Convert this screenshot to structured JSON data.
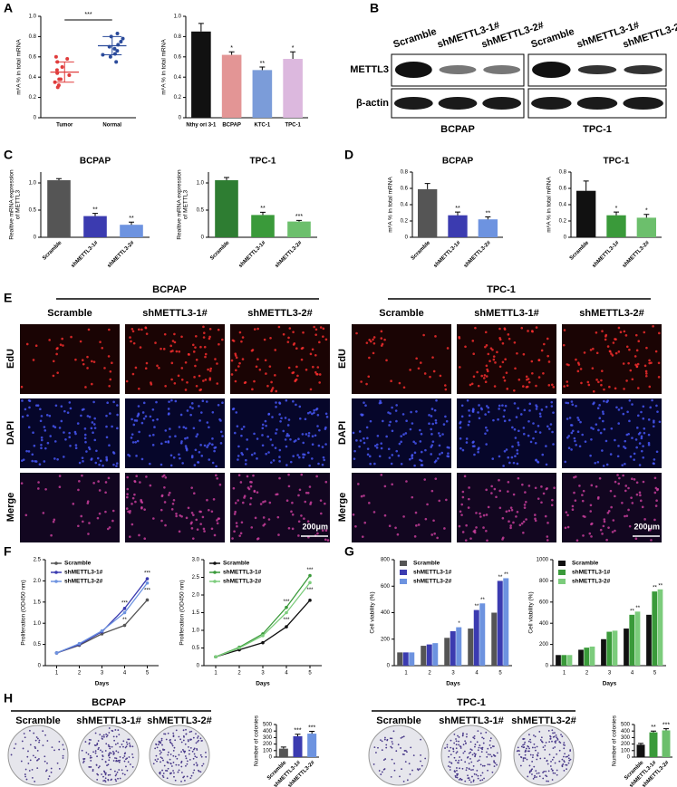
{
  "panels": [
    "A",
    "B",
    "C",
    "D",
    "E",
    "F",
    "G",
    "H"
  ],
  "blot": {
    "lanes": [
      "Scramble",
      "shMETTL3-1#",
      "shMETTL3-2#"
    ],
    "rows": [
      "METTL3",
      "β-actin"
    ],
    "cells": [
      "BCPAP",
      "TPC-1"
    ]
  },
  "edu": {
    "groups": [
      "BCPAP",
      "TPC-1"
    ],
    "columns": [
      "Scramble",
      "shMETTL3-1#",
      "shMETTL3-2#"
    ],
    "rows": [
      "EdU",
      "DAPI",
      "Merge"
    ],
    "scale_bar": "200μm"
  },
  "colony": {
    "groups": [
      "BCPAP",
      "TPC-1"
    ],
    "columns": [
      "Scramble",
      "shMETTL3-1#",
      "shMETTL3-2#"
    ]
  },
  "chart_data": [
    {
      "type": "strip",
      "categories": [
        "Tumor",
        "Normal"
      ],
      "points": [
        [
          0.32,
          0.35,
          0.38,
          0.42,
          0.44,
          0.47,
          0.5,
          0.55,
          0.58,
          0.6,
          0.38,
          0.3
        ],
        [
          0.55,
          0.6,
          0.63,
          0.66,
          0.7,
          0.72,
          0.75,
          0.78,
          0.8,
          0.83,
          0.68,
          0.62
        ]
      ],
      "means": [
        0.45,
        0.71
      ],
      "errors": [
        0.1,
        0.09
      ],
      "colors": [
        "#e03c3c",
        "#2a4a9a"
      ],
      "annotation": "***",
      "ylabel": "m⁶A % in total mRNA",
      "ylim": [
        0,
        1
      ],
      "yticks": [
        0,
        0.2,
        0.4,
        0.6,
        0.8,
        {
          "value": 1,
          "label": "1.0"
        }
      ]
    },
    {
      "type": "bar",
      "categories": [
        "Nthy ori 3-1",
        "BCPAP",
        "KTC-1",
        "TPC-1"
      ],
      "values": [
        0.85,
        0.62,
        0.47,
        0.58
      ],
      "errors": [
        0.08,
        0.03,
        0.03,
        0.07
      ],
      "colors": [
        "#111111",
        "#e39595",
        "#7b9cd9",
        "#dcb8de"
      ],
      "annotations": [
        null,
        "*",
        "**",
        "*"
      ],
      "xtick_rotation": 0,
      "ylabel": "m⁶A % in total mRNA",
      "ylim": [
        0,
        1
      ],
      "yticks": [
        0,
        0.2,
        0.4,
        0.6,
        0.8,
        {
          "value": 1,
          "label": "1.0"
        }
      ]
    },
    {
      "type": "bar",
      "title": "BCPAP",
      "categories": [
        "Scramble",
        "shMETTL3-1#",
        "shMETTL3-2#"
      ],
      "values": [
        1.05,
        0.39,
        0.23
      ],
      "errors": [
        0.03,
        0.05,
        0.05
      ],
      "colors": [
        "#555555",
        "#3b3bb0",
        "#6d93e0"
      ],
      "annotations": [
        null,
        "**",
        "**"
      ],
      "xtick_rotation": 45,
      "ylabel": [
        "Realtive mRNA expression",
        "of METTL3"
      ],
      "ylim": [
        0,
        1.2
      ],
      "yticks": [
        0,
        0.5,
        {
          "value": 1,
          "label": "1.0"
        }
      ]
    },
    {
      "type": "bar",
      "title": "TPC-1",
      "categories": [
        "Scramble",
        "shMETTL3-1#",
        "shMETTL3-2#"
      ],
      "values": [
        1.05,
        0.41,
        0.29
      ],
      "errors": [
        0.05,
        0.05,
        0.02
      ],
      "colors": [
        "#2e7d32",
        "#3a9a3a",
        "#6cbf6c"
      ],
      "annotations": [
        null,
        "**",
        "***"
      ],
      "xtick_rotation": 45,
      "ylabel": [
        "Realtive mRNA expression",
        "of METTL3"
      ],
      "ylim": [
        0,
        1.2
      ],
      "yticks": [
        0,
        0.5,
        {
          "value": 1,
          "label": "1.0"
        }
      ]
    },
    {
      "type": "bar",
      "title": "BCPAP",
      "categories": [
        "Scramble",
        "shMETTL3-1#",
        "shMETTL3-2#"
      ],
      "values": [
        0.59,
        0.27,
        0.22
      ],
      "errors": [
        0.07,
        0.04,
        0.03
      ],
      "colors": [
        "#555555",
        "#3b3bb0",
        "#6d93e0"
      ],
      "annotations": [
        null,
        "**",
        "**"
      ],
      "xtick_rotation": 45,
      "ylabel": "m⁶A % in total mRNA",
      "ylim": [
        0,
        0.8
      ],
      "yticks": [
        0,
        0.2,
        0.4,
        0.6,
        0.8
      ]
    },
    {
      "type": "bar",
      "title": "TPC-1",
      "categories": [
        "Scramble",
        "shMETTL3-1#",
        "shMETTL3-2#"
      ],
      "values": [
        0.57,
        0.27,
        0.24
      ],
      "errors": [
        0.12,
        0.04,
        0.04
      ],
      "colors": [
        "#111111",
        "#3a9a3a",
        "#6cbf6c"
      ],
      "annotations": [
        null,
        "*",
        "*"
      ],
      "xtick_rotation": 45,
      "ylabel": "m⁶A % in total mRNA",
      "ylim": [
        0,
        0.8
      ],
      "yticks": [
        0,
        0.2,
        0.4,
        0.6,
        0.8
      ]
    },
    {
      "type": "line",
      "x": [
        1,
        2,
        3,
        4,
        5
      ],
      "xlim": [
        0.5,
        5.5
      ],
      "xticks": [
        1,
        2,
        3,
        4,
        5
      ],
      "xlabel": "Days",
      "ylabel": "Proliferation (OD450 nm)",
      "ylim": [
        0,
        2.5
      ],
      "yticks": [
        0,
        0.5,
        {
          "value": 1,
          "label": "1.0"
        },
        1.5,
        {
          "value": 2,
          "label": "2.0"
        },
        2.5
      ],
      "legend": "upper left",
      "series": [
        {
          "name": "Scramble",
          "color": "#555555",
          "values": [
            0.3,
            0.48,
            0.75,
            0.95,
            1.55
          ]
        },
        {
          "name": "shMETTL3-1#",
          "color": "#3b3bb0",
          "values": [
            0.3,
            0.5,
            0.8,
            1.35,
            2.05
          ],
          "annotations": [
            null,
            null,
            null,
            "***",
            "***"
          ]
        },
        {
          "name": "shMETTL3-2#",
          "color": "#6d93e0",
          "values": [
            0.3,
            0.52,
            0.82,
            1.25,
            1.95
          ],
          "annotations": [
            null,
            null,
            null,
            "**",
            "***"
          ]
        }
      ]
    },
    {
      "type": "line",
      "x": [
        1,
        2,
        3,
        4,
        5
      ],
      "xlim": [
        0.5,
        5.5
      ],
      "xticks": [
        1,
        2,
        3,
        4,
        5
      ],
      "xlabel": "Days",
      "ylabel": "Proliferation (OD450 nm)",
      "ylim": [
        0,
        3
      ],
      "yticks": [
        0,
        0.5,
        {
          "value": 1,
          "label": "1.0"
        },
        1.5,
        {
          "value": 2,
          "label": "2.0"
        },
        2.5,
        {
          "value": 3,
          "label": "3.0"
        }
      ],
      "legend": "upper left",
      "series": [
        {
          "name": "Scramble",
          "color": "#111111",
          "values": [
            0.25,
            0.45,
            0.65,
            1.1,
            1.85
          ]
        },
        {
          "name": "shMETTL3-1#",
          "color": "#3a9a3a",
          "values": [
            0.25,
            0.52,
            0.9,
            1.65,
            2.55
          ],
          "annotations": [
            null,
            null,
            null,
            "***",
            "***"
          ]
        },
        {
          "name": "shMETTL3-2#",
          "color": "#7ccc7c",
          "values": [
            0.25,
            0.5,
            0.85,
            1.5,
            2.35
          ],
          "annotations": [
            null,
            null,
            null,
            "***",
            "***"
          ]
        }
      ]
    },
    {
      "type": "grouped_bar",
      "categories": [
        "1",
        "2",
        "3",
        "4",
        "5"
      ],
      "xlabel": "Days",
      "ylabel": "Cell viability (%)",
      "ylim": [
        0,
        800
      ],
      "yticks": [
        0,
        200,
        400,
        600,
        800
      ],
      "legend": "upper left",
      "series": [
        {
          "name": "Scramble",
          "color": "#555555",
          "values": [
            100,
            150,
            210,
            280,
            400
          ]
        },
        {
          "name": "shMETTL3-1#",
          "color": "#3b3bb0",
          "values": [
            100,
            160,
            260,
            420,
            640
          ],
          "annotations": [
            null,
            null,
            null,
            "**",
            "**"
          ]
        },
        {
          "name": "shMETTL3-2#",
          "color": "#6d93e0",
          "values": [
            100,
            170,
            290,
            470,
            660
          ],
          "annotations": [
            null,
            null,
            "*",
            "**",
            "**"
          ]
        }
      ]
    },
    {
      "type": "grouped_bar",
      "categories": [
        "1",
        "2",
        "3",
        "4",
        "5"
      ],
      "xlabel": "Days",
      "ylabel": "Cell viability (%)",
      "ylim": [
        0,
        1000
      ],
      "yticks": [
        0,
        200,
        400,
        600,
        800,
        1000
      ],
      "legend": "upper left",
      "series": [
        {
          "name": "Scramble",
          "color": "#111111",
          "values": [
            100,
            150,
            250,
            350,
            480
          ]
        },
        {
          "name": "shMETTL3-1#",
          "color": "#3a9a3a",
          "values": [
            100,
            170,
            320,
            480,
            700
          ],
          "annotations": [
            null,
            null,
            null,
            "**",
            "**"
          ]
        },
        {
          "name": "shMETTL3-2#",
          "color": "#7ccc7c",
          "values": [
            100,
            180,
            330,
            510,
            720
          ],
          "annotations": [
            null,
            null,
            null,
            "**",
            "**"
          ]
        }
      ]
    },
    {
      "type": "bar",
      "categories": [
        "Scramble",
        "shMETTL3-1#",
        "shMETTL3-2#"
      ],
      "values": [
        130,
        320,
        360
      ],
      "errors": [
        25,
        30,
        35
      ],
      "colors": [
        "#555555",
        "#3b3bb0",
        "#6d93e0"
      ],
      "annotations": [
        null,
        "***",
        "***"
      ],
      "xtick_rotation": 45,
      "ylabel": "Number of colonies",
      "ylim": [
        0,
        500
      ],
      "yticks": [
        0,
        100,
        200,
        300,
        400,
        500
      ]
    },
    {
      "type": "bar",
      "categories": [
        "Scramble",
        "shMETTL3-1#",
        "shMETTL3-2#"
      ],
      "values": [
        190,
        380,
        410
      ],
      "errors": [
        20,
        20,
        25
      ],
      "colors": [
        "#111111",
        "#3a9a3a",
        "#6cbf6c"
      ],
      "annotations": [
        null,
        "**",
        "***"
      ],
      "xtick_rotation": 45,
      "ylabel": "Number of colonies",
      "ylim": [
        0,
        500
      ],
      "yticks": [
        0,
        100,
        200,
        300,
        400,
        500
      ]
    }
  ]
}
